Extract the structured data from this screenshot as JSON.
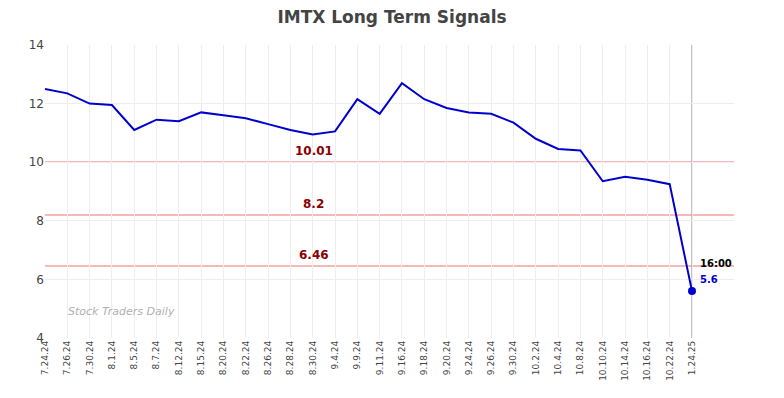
{
  "chart_data": {
    "type": "line",
    "title": "IMTX Long Term Signals",
    "categories": [
      "7.24.24",
      "7.26.24",
      "7.30.24",
      "8.1.24",
      "8.5.24",
      "8.7.24",
      "8.12.24",
      "8.15.24",
      "8.20.24",
      "8.22.24",
      "8.26.24",
      "8.28.24",
      "8.30.24",
      "9.4.24",
      "9.9.24",
      "9.11.24",
      "9.16.24",
      "9.18.24",
      "9.20.24",
      "9.24.24",
      "9.26.24",
      "9.30.24",
      "10.2.24",
      "10.4.24",
      "10.8.24",
      "10.10.24",
      "10.14.24",
      "10.16.24",
      "10.22.24",
      "1.24.25"
    ],
    "values": [
      12.5,
      12.35,
      12.0,
      11.95,
      11.1,
      11.45,
      11.4,
      11.7,
      11.6,
      11.5,
      11.3,
      11.1,
      10.95,
      11.05,
      12.15,
      11.65,
      12.7,
      12.15,
      11.85,
      11.7,
      11.65,
      11.35,
      10.8,
      10.45,
      10.4,
      9.35,
      9.5,
      9.4,
      9.25,
      5.6
    ],
    "color": "#0000cc",
    "ylim": [
      4,
      14
    ],
    "yticks": [
      4,
      6,
      8,
      10,
      12,
      14
    ],
    "grid": true,
    "hlines": [
      {
        "value": 10.01,
        "label": "10.01",
        "color": "#f4a0a0"
      },
      {
        "value": 8.2,
        "label": "8.2",
        "color": "#f4a0a0"
      },
      {
        "value": 6.46,
        "label": "6.46",
        "color": "#f4a0a0"
      }
    ],
    "watermark": {
      "text": "Stock Traders Daily",
      "color": "#b0b0b0"
    },
    "end_labels": {
      "time": "16:00",
      "value": "5.6"
    }
  }
}
